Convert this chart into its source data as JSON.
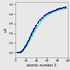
{
  "title": "",
  "xlabel": "atomic number Z",
  "ylabel": "ωK",
  "xlim": [
    0,
    100
  ],
  "ylim": [
    -0.1,
    1.05
  ],
  "xticks": [
    0,
    20,
    40,
    60,
    80,
    100
  ],
  "yticks": [
    0.0,
    0.2,
    0.4,
    0.6,
    0.8,
    1.0
  ],
  "background_color": "#e8e8e8",
  "scatter_color": "#1a237e",
  "curve_color": "#4dd0e1",
  "data_points": [
    [
      4,
      0.001
    ],
    [
      6,
      0.002
    ],
    [
      8,
      0.004
    ],
    [
      10,
      0.008
    ],
    [
      11,
      0.015
    ],
    [
      12,
      0.025
    ],
    [
      13,
      0.038
    ],
    [
      14,
      0.05
    ],
    [
      15,
      0.065
    ],
    [
      16,
      0.08
    ],
    [
      17,
      0.097
    ],
    [
      18,
      0.115
    ],
    [
      19,
      0.13
    ],
    [
      20,
      0.148
    ],
    [
      21,
      0.168
    ],
    [
      22,
      0.188
    ],
    [
      23,
      0.208
    ],
    [
      24,
      0.228
    ],
    [
      25,
      0.25
    ],
    [
      26,
      0.275
    ],
    [
      27,
      0.298
    ],
    [
      28,
      0.323
    ],
    [
      29,
      0.348
    ],
    [
      30,
      0.372
    ],
    [
      31,
      0.395
    ],
    [
      32,
      0.415
    ],
    [
      33,
      0.438
    ],
    [
      34,
      0.458
    ],
    [
      35,
      0.478
    ],
    [
      36,
      0.498
    ],
    [
      37,
      0.518
    ],
    [
      38,
      0.538
    ],
    [
      39,
      0.556
    ],
    [
      40,
      0.574
    ],
    [
      42,
      0.608
    ],
    [
      44,
      0.638
    ],
    [
      46,
      0.666
    ],
    [
      47,
      0.678
    ],
    [
      48,
      0.692
    ],
    [
      50,
      0.716
    ],
    [
      52,
      0.736
    ],
    [
      54,
      0.756
    ],
    [
      56,
      0.772
    ],
    [
      58,
      0.786
    ],
    [
      60,
      0.8
    ],
    [
      62,
      0.814
    ],
    [
      64,
      0.826
    ],
    [
      66,
      0.836
    ],
    [
      68,
      0.846
    ],
    [
      70,
      0.856
    ],
    [
      72,
      0.865
    ],
    [
      74,
      0.874
    ],
    [
      76,
      0.882
    ],
    [
      78,
      0.89
    ],
    [
      80,
      0.898
    ],
    [
      82,
      0.904
    ],
    [
      83,
      0.908
    ],
    [
      84,
      0.912
    ],
    [
      86,
      0.918
    ],
    [
      88,
      0.924
    ],
    [
      90,
      0.929
    ],
    [
      92,
      0.934
    ],
    [
      94,
      0.938
    ],
    [
      96,
      0.942
    ]
  ],
  "curve_points_x": [
    2,
    4,
    6,
    8,
    10,
    12,
    14,
    16,
    18,
    20,
    22,
    24,
    26,
    28,
    30,
    32,
    34,
    36,
    38,
    40,
    42,
    44,
    46,
    48,
    50,
    52,
    54,
    56,
    58,
    60,
    62,
    64,
    66,
    68,
    70,
    72,
    74,
    76,
    78,
    80,
    82,
    84,
    86,
    88,
    90,
    92,
    94,
    96,
    98,
    100
  ],
  "curve_points_y": [
    0.0004,
    0.001,
    0.002,
    0.005,
    0.009,
    0.018,
    0.032,
    0.052,
    0.076,
    0.106,
    0.14,
    0.176,
    0.215,
    0.256,
    0.298,
    0.34,
    0.382,
    0.422,
    0.462,
    0.5,
    0.537,
    0.572,
    0.604,
    0.634,
    0.66,
    0.685,
    0.706,
    0.726,
    0.744,
    0.761,
    0.776,
    0.79,
    0.803,
    0.815,
    0.826,
    0.836,
    0.845,
    0.854,
    0.862,
    0.87,
    0.877,
    0.884,
    0.89,
    0.896,
    0.901,
    0.906,
    0.91,
    0.914,
    0.918,
    0.921
  ],
  "marker_size": 2.5,
  "curve_linewidth": 1.0
}
